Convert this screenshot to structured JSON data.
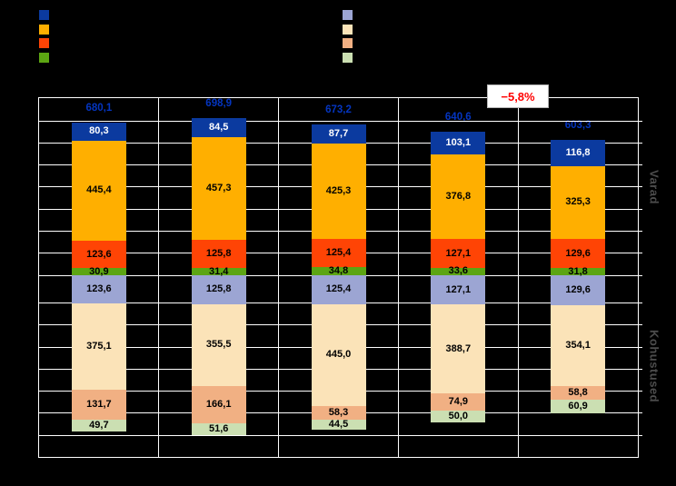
{
  "side_labels": {
    "top": "Varad",
    "bottom": "Kohustused",
    "color": "#4D4D4D"
  },
  "chart_data": {
    "type": "bar",
    "subtype": "stacked-balance",
    "description_visible_text_only": true,
    "categories": [
      "",
      "",
      "",
      "",
      ""
    ],
    "totals": {
      "values": [
        680.1,
        698.9,
        673.2,
        640.6,
        603.3
      ],
      "label_color": "#0435C0"
    },
    "groups": [
      {
        "name": "Varad",
        "direction": "up",
        "series": [
          {
            "name": "dark-blue",
            "color": "#0B3A9F",
            "label_color": "#FFFFFF",
            "values": [
              80.3,
              84.5,
              87.7,
              103.1,
              116.8
            ]
          },
          {
            "name": "orange",
            "color": "#FFAF00",
            "label_color": "#000000",
            "values": [
              445.4,
              457.3,
              425.3,
              376.8,
              325.3
            ]
          },
          {
            "name": "red-orange",
            "color": "#FF4405",
            "label_color": "#000000",
            "values": [
              123.6,
              125.8,
              125.4,
              127.1,
              129.6
            ]
          },
          {
            "name": "green",
            "color": "#5CA513",
            "label_color": "#000000",
            "values": [
              30.9,
              31.4,
              34.8,
              33.6,
              31.8
            ]
          }
        ]
      },
      {
        "name": "Kohustused",
        "direction": "down",
        "series": [
          {
            "name": "periwinkle",
            "color": "#9CA5D3",
            "label_color": "#000000",
            "values": [
              123.6,
              125.8,
              125.4,
              127.1,
              129.6
            ]
          },
          {
            "name": "tan",
            "color": "#FBE3B8",
            "label_color": "#000000",
            "values": [
              375.1,
              355.5,
              445.0,
              388.7,
              354.1
            ]
          },
          {
            "name": "salmon",
            "color": "#F1B083",
            "label_color": "#000000",
            "values": [
              131.7,
              166.1,
              58.3,
              74.9,
              58.8
            ]
          },
          {
            "name": "light-green",
            "color": "#CBDFB2",
            "label_color": "#000000",
            "values": [
              49.7,
              51.6,
              44.5,
              50.0,
              60.9
            ]
          }
        ]
      }
    ],
    "annotation": {
      "text": "−5,8%",
      "color": "#FF0000"
    },
    "legend": {
      "position": "top",
      "labels_visible": false,
      "left_swatches": [
        "#0B3A9F",
        "#FFAF00",
        "#FF4405",
        "#5CA513"
      ],
      "right_swatches": [
        "#9CA5D3",
        "#FBE3B8",
        "#F1B083",
        "#CBDFB2"
      ]
    },
    "axis": {
      "gridlines": true,
      "tick_labels_visible": false
    }
  }
}
